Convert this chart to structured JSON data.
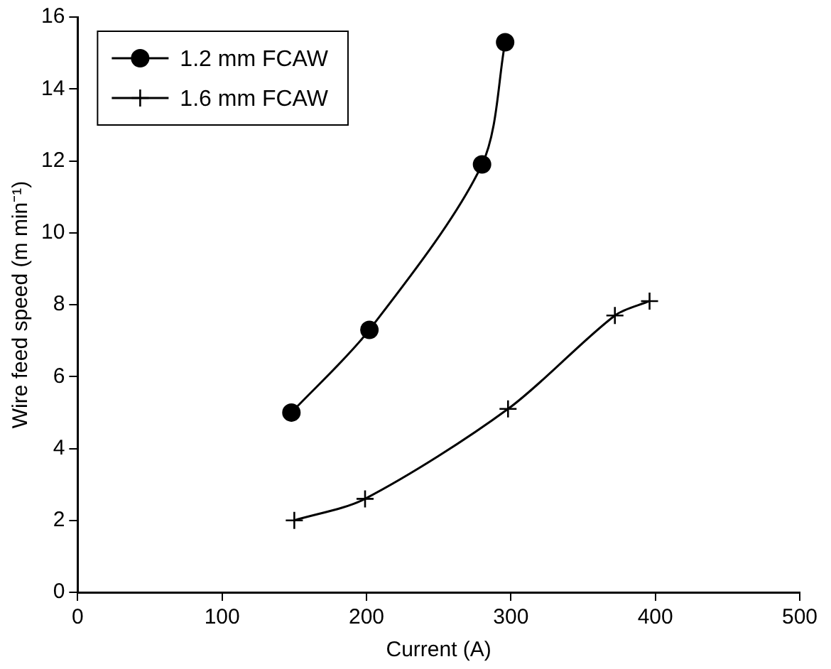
{
  "chart_data": {
    "type": "line",
    "xlabel": "Current (A)",
    "ylabel": "Wire feed speed (m min⁻¹)",
    "xlim": [
      0,
      500
    ],
    "xticks": [
      0,
      100,
      200,
      300,
      400,
      500
    ],
    "ylim": [
      0,
      16
    ],
    "yticks": [
      0,
      2,
      4,
      6,
      8,
      10,
      12,
      14,
      16
    ],
    "grid": false,
    "legend": "top left",
    "series": [
      {
        "name": "1.2 mm FCAW",
        "color": "#000000",
        "marker": "circle",
        "x": [
          148,
          202,
          280,
          296
        ],
        "values": [
          5.0,
          7.3,
          11.9,
          15.3
        ]
      },
      {
        "name": "1.6 mm FCAW",
        "color": "#000000",
        "marker": "cross",
        "x": [
          150,
          199,
          298,
          372,
          396
        ],
        "values": [
          2.0,
          2.6,
          5.1,
          7.7,
          8.1
        ]
      }
    ]
  }
}
